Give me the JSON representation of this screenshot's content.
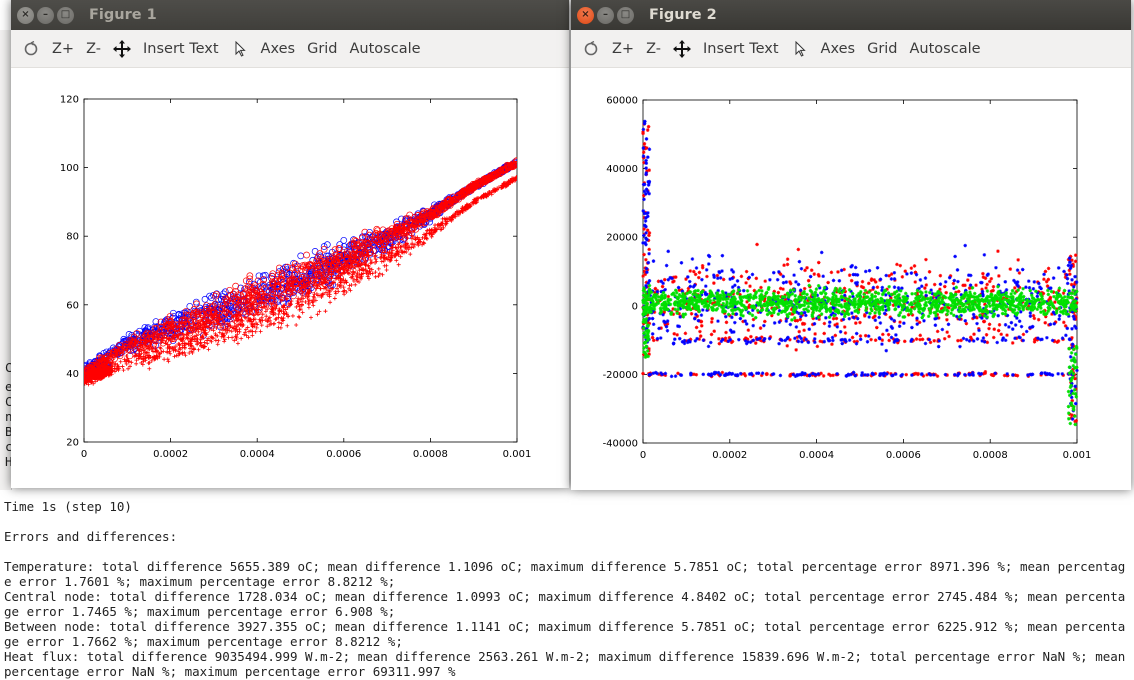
{
  "terminal": {
    "left_fragment": [
      "C",
      "e",
      "C",
      "n",
      "B",
      "c",
      "H"
    ],
    "lines": [
      "Time 1s (step 10)",
      "",
      "Errors and differences:",
      "",
      "Temperature: total difference 5655.389 oC; mean difference 1.1096 oC; maximum difference 5.7851 oC; total percentage error 8971.396 %; mean percentage error 1.7601 %; maximum percentage error 8.8212 %;",
      "Central node: total difference 1728.034 oC; mean difference 1.0993 oC; maximum difference 4.8402 oC; total percentage error 2745.484 %; mean percentage error 1.7465 %; maximum percentage error 6.908 %;",
      "Between node: total difference 3927.355 oC; mean difference 1.1141 oC; maximum difference 5.7851 oC; total percentage error 6225.912 %; mean percentage error 1.7662 %; maximum percentage error 8.8212 %;",
      "Heat flux: total difference 9035494.999 W.m-2; mean difference 2563.261 W.m-2; maximum difference 15839.696 W.m-2; total percentage error NaN %; mean percentage error NaN %; maximum percentage error 69311.997 %"
    ]
  },
  "window_controls": {
    "close": "×",
    "minimize": "–",
    "maximize": "□"
  },
  "toolbar": {
    "zoom_in": "Z+",
    "zoom_out": "Z-",
    "insert_text": "Insert Text",
    "axes": "Axes",
    "grid": "Grid",
    "autoscale": "Autoscale"
  },
  "figure1": {
    "title": "Figure 1"
  },
  "figure2": {
    "title": "Figure 2"
  },
  "colors": {
    "red": "#ff0000",
    "blue": "#0000ff",
    "green": "#00e000",
    "titlebar": "#3c3b37",
    "close": "#dd4814"
  },
  "chart_data": [
    {
      "type": "scatter",
      "title": "",
      "xlabel": "",
      "ylabel": "",
      "xlim": [
        0,
        0.001
      ],
      "ylim": [
        20,
        120
      ],
      "xticks": [
        "0",
        "0.0002",
        "0.0004",
        "0.0006",
        "0.0008",
        "0.001"
      ],
      "yticks": [
        "20",
        "40",
        "60",
        "80",
        "100",
        "120"
      ],
      "grid": false,
      "series": [
        {
          "color": "#0000ff",
          "marker": "circle",
          "x": [
            0,
            0.0001,
            0.0002,
            0.0003,
            0.0004,
            0.0005,
            0.0006,
            0.0007,
            0.0008,
            0.0009,
            0.001
          ],
          "y": [
            40,
            47,
            52,
            56,
            61,
            66,
            72,
            78,
            85,
            93,
            100
          ]
        },
        {
          "color": "#ff0000",
          "marker": "circle",
          "x": [
            0,
            0.0001,
            0.0002,
            0.0003,
            0.0004,
            0.0005,
            0.0006,
            0.0007,
            0.0008,
            0.0009,
            0.001
          ],
          "y": [
            39,
            46,
            51,
            56,
            61,
            66,
            72,
            78,
            85,
            93,
            100
          ]
        },
        {
          "color": "#ff0000",
          "marker": "plus",
          "x": [
            0,
            0.0001,
            0.0002,
            0.0003,
            0.0004,
            0.0005,
            0.0006,
            0.0007,
            0.0008,
            0.0009,
            0.001
          ],
          "y": [
            38,
            44,
            48,
            53,
            57,
            62,
            68,
            75,
            82,
            91,
            98
          ]
        }
      ]
    },
    {
      "type": "scatter",
      "title": "",
      "xlabel": "",
      "ylabel": "",
      "xlim": [
        0,
        0.001
      ],
      "ylim": [
        -40000,
        60000
      ],
      "xticks": [
        "0",
        "0.0002",
        "0.0004",
        "0.0006",
        "0.0008",
        "0.001"
      ],
      "yticks": [
        "-40000",
        "-20000",
        "0",
        "20000",
        "40000",
        "60000"
      ],
      "grid": false,
      "series": [
        {
          "color": "#ff0000",
          "marker": "star",
          "x": [
            0,
            0.0001,
            0.0003,
            0.0005,
            0.0007,
            0.0009,
            0.001
          ],
          "y": [
            50000,
            15000,
            -20000,
            10000,
            -20000,
            25000,
            -30000
          ]
        },
        {
          "color": "#0000ff",
          "marker": "star",
          "x": [
            0,
            0.0001,
            0.0003,
            0.0005,
            0.0007,
            0.0009,
            0.001
          ],
          "y": [
            45000,
            20000,
            -15000,
            18000,
            -18000,
            22000,
            -35000
          ]
        },
        {
          "color": "#00e000",
          "marker": "star",
          "x": [
            0,
            0.0001,
            0.0003,
            0.0005,
            0.0007,
            0.0009,
            0.001
          ],
          "y": [
            0,
            2000,
            -3000,
            4000,
            -2000,
            3000,
            -5000
          ]
        }
      ]
    }
  ]
}
